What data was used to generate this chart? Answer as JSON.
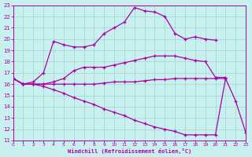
{
  "xlabel": "Windchill (Refroidissement éolien,°C)",
  "bg_color": "#c8f0ee",
  "grid_color": "#a8d8d4",
  "line_color": "#aa00aa",
  "xlim": [
    0,
    23
  ],
  "ylim": [
    11,
    23
  ],
  "xticks": [
    0,
    1,
    2,
    3,
    4,
    5,
    6,
    7,
    8,
    9,
    10,
    11,
    12,
    13,
    14,
    15,
    16,
    17,
    18,
    19,
    20,
    21,
    22,
    23
  ],
  "yticks": [
    11,
    12,
    13,
    14,
    15,
    16,
    17,
    18,
    19,
    20,
    21,
    22,
    23
  ],
  "line1_x": [
    0,
    1,
    2,
    3,
    4,
    5,
    6,
    7,
    8,
    9,
    10,
    11,
    12,
    13,
    14,
    15,
    16,
    17,
    18,
    19,
    20
  ],
  "line1_y": [
    16.5,
    16.0,
    16.2,
    17.0,
    19.8,
    19.5,
    19.3,
    19.3,
    19.5,
    20.5,
    21.0,
    21.5,
    22.8,
    22.5,
    22.4,
    22.0,
    20.5,
    20.0,
    20.2,
    20.0,
    19.9
  ],
  "line2_x": [
    0,
    1,
    2,
    3,
    4,
    5,
    6,
    7,
    8,
    9,
    10,
    11,
    12,
    13,
    14,
    15,
    16,
    17,
    18,
    19,
    20,
    21
  ],
  "line2_y": [
    16.5,
    16.0,
    16.0,
    16.0,
    16.2,
    16.5,
    17.2,
    17.5,
    17.5,
    17.5,
    17.7,
    17.9,
    18.1,
    18.3,
    18.5,
    18.5,
    18.5,
    18.3,
    18.1,
    18.0,
    16.6,
    16.6
  ],
  "line3_x": [
    0,
    1,
    2,
    3,
    4,
    5,
    6,
    7,
    8,
    9,
    10,
    11,
    12,
    13,
    14,
    15,
    16,
    17,
    18,
    19,
    20,
    21
  ],
  "line3_y": [
    16.5,
    16.0,
    16.0,
    16.0,
    16.0,
    16.0,
    16.0,
    16.0,
    16.0,
    16.1,
    16.2,
    16.2,
    16.2,
    16.3,
    16.4,
    16.4,
    16.5,
    16.5,
    16.5,
    16.5,
    16.5,
    16.5
  ],
  "line4_x": [
    0,
    1,
    2,
    3,
    4,
    5,
    6,
    7,
    8,
    9,
    10,
    11,
    12,
    13,
    14,
    15,
    16,
    17,
    18,
    19,
    20,
    21,
    22,
    23
  ],
  "line4_y": [
    16.5,
    16.0,
    16.0,
    15.8,
    15.5,
    15.2,
    14.8,
    14.5,
    14.2,
    13.8,
    13.5,
    13.2,
    12.8,
    12.5,
    12.2,
    12.0,
    11.8,
    11.5,
    11.5,
    11.5,
    11.5,
    16.5,
    14.5,
    11.7
  ]
}
